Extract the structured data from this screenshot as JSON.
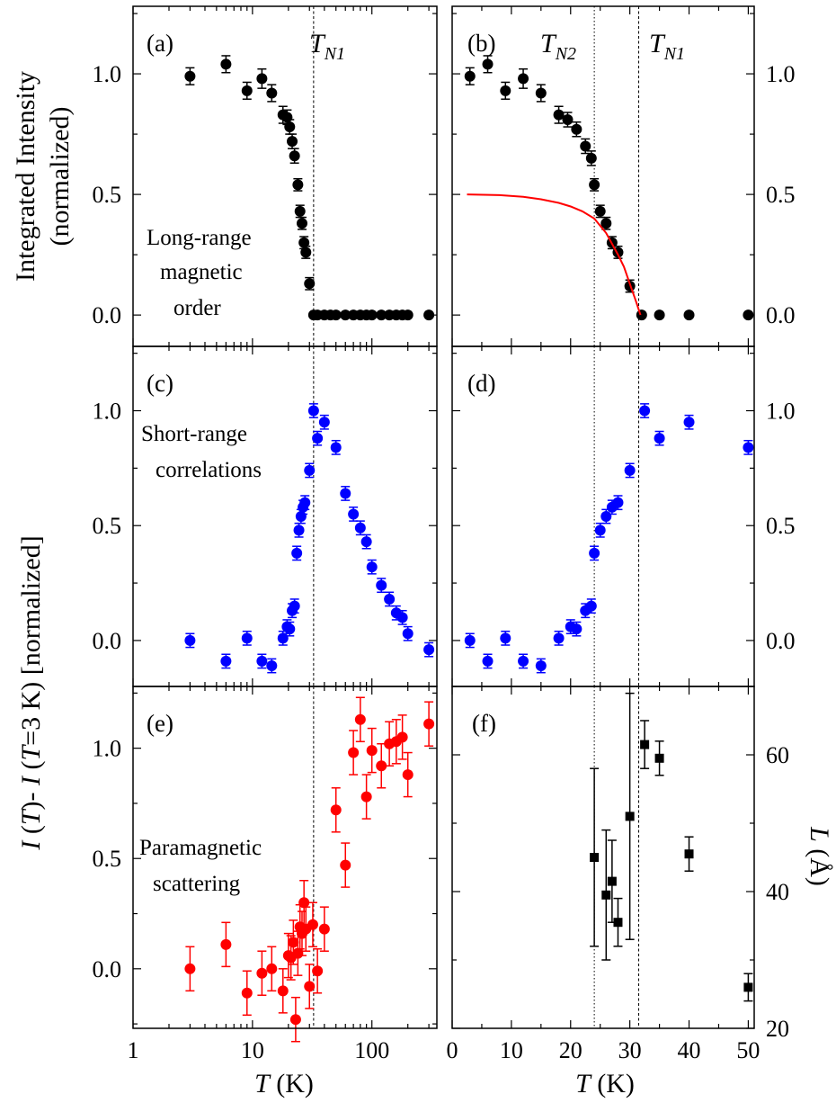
{
  "figure": {
    "ylabel_top_left": "Integrated Intensity",
    "ylabel_top_left2": "(normalized)",
    "ylabel_mid_left_parts": [
      "I",
      " (",
      "T",
      ")- ",
      "I",
      " (",
      "T",
      "=3 K) [normalized]"
    ],
    "ylabel_right_parts": [
      "L",
      " (Å)"
    ],
    "xlabel_parts": [
      "T",
      " (K)"
    ]
  },
  "chart_data": [
    {
      "panel": "a",
      "label": "(a)",
      "type": "scatter",
      "xscale": "log",
      "xlim": [
        1,
        350
      ],
      "ylim": [
        -0.13,
        1.28
      ],
      "yticks": [
        0.0,
        0.5,
        1.0
      ],
      "ytick_labels": [
        "0.0",
        "0.5",
        "1.0"
      ],
      "annotations": [
        "Long-range",
        "magnetic",
        "order"
      ],
      "ref_lines": [
        {
          "x": 32.5,
          "label": "T",
          "sub": "N1"
        }
      ],
      "series": [
        {
          "color": "#000000",
          "marker": "circle",
          "points": [
            [
              3,
              0.99,
              0.035
            ],
            [
              6,
              1.04,
              0.035
            ],
            [
              9,
              0.93,
              0.035
            ],
            [
              12,
              0.98,
              0.04
            ],
            [
              14.5,
              0.92,
              0.035
            ],
            [
              18,
              0.83,
              0.035
            ],
            [
              19.5,
              0.82,
              0.03
            ],
            [
              20.5,
              0.78,
              0.03
            ],
            [
              21.5,
              0.72,
              0.03
            ],
            [
              22.5,
              0.66,
              0.03
            ],
            [
              24,
              0.54,
              0.025
            ],
            [
              25,
              0.43,
              0.025
            ],
            [
              26,
              0.38,
              0.025
            ],
            [
              27,
              0.3,
              0.025
            ],
            [
              28,
              0.26,
              0.025
            ],
            [
              30,
              0.13,
              0.025
            ],
            [
              32.5,
              0,
              0
            ],
            [
              35,
              0,
              0
            ],
            [
              40,
              0,
              0
            ],
            [
              45,
              0,
              0
            ],
            [
              50,
              0,
              0
            ],
            [
              60,
              0,
              0
            ],
            [
              70,
              0,
              0
            ],
            [
              80,
              0,
              0
            ],
            [
              90,
              0,
              0
            ],
            [
              100,
              0,
              0
            ],
            [
              120,
              0,
              0
            ],
            [
              140,
              0,
              0
            ],
            [
              160,
              0,
              0
            ],
            [
              180,
              0,
              0
            ],
            [
              200,
              0,
              0
            ],
            [
              300,
              0,
              0
            ]
          ]
        }
      ]
    },
    {
      "panel": "b",
      "label": "(b)",
      "type": "scatter",
      "xscale": "linear",
      "xlim": [
        0,
        51
      ],
      "ylim": [
        -0.13,
        1.28
      ],
      "yticks": [
        0.0,
        0.5,
        1.0
      ],
      "ytick_labels": [
        "0.0",
        "0.5",
        "1.0"
      ],
      "ref_lines": [
        {
          "x": 24,
          "label": "T",
          "sub": "N2"
        },
        {
          "x": 31.5,
          "label": "T",
          "sub": "N1"
        }
      ],
      "series": [
        {
          "color": "#000000",
          "marker": "circle",
          "points": [
            [
              3,
              0.99,
              0.035
            ],
            [
              6,
              1.04,
              0.035
            ],
            [
              9,
              0.93,
              0.035
            ],
            [
              12,
              0.98,
              0.04
            ],
            [
              15,
              0.92,
              0.035
            ],
            [
              18,
              0.83,
              0.035
            ],
            [
              19.5,
              0.81,
              0.03
            ],
            [
              21,
              0.77,
              0.03
            ],
            [
              22.5,
              0.7,
              0.03
            ],
            [
              23.5,
              0.65,
              0.03
            ],
            [
              24,
              0.54,
              0.025
            ],
            [
              25,
              0.43,
              0.025
            ],
            [
              26,
              0.38,
              0.025
            ],
            [
              27,
              0.3,
              0.025
            ],
            [
              28,
              0.26,
              0.025
            ],
            [
              30,
              0.12,
              0.025
            ],
            [
              32,
              0,
              0
            ],
            [
              35,
              0,
              0
            ],
            [
              40,
              0,
              0
            ],
            [
              50,
              0,
              0
            ]
          ]
        },
        {
          "color": "#ff0000",
          "marker": "none",
          "line": [
            [
              2.5,
              0.5
            ],
            [
              8,
              0.497
            ],
            [
              12,
              0.49
            ],
            [
              15,
              0.48
            ],
            [
              18,
              0.465
            ],
            [
              20,
              0.45
            ],
            [
              22,
              0.43
            ],
            [
              24,
              0.4
            ],
            [
              26,
              0.34
            ],
            [
              28,
              0.25
            ],
            [
              29,
              0.2
            ],
            [
              30,
              0.13
            ],
            [
              31,
              0.06
            ],
            [
              31.8,
              0.0
            ]
          ]
        }
      ]
    },
    {
      "panel": "c",
      "label": "(c)",
      "type": "scatter",
      "xscale": "log",
      "xlim": [
        1,
        350
      ],
      "ylim": [
        -0.2,
        1.28
      ],
      "yticks": [
        0.0,
        0.5,
        1.0
      ],
      "ytick_labels": [
        "0.0",
        "0.5",
        "1.0"
      ],
      "annotations": [
        "Short-range",
        "correlations"
      ],
      "ref_lines": [
        {
          "x": 32.5
        }
      ],
      "series": [
        {
          "color": "#0000ff",
          "marker": "circle",
          "points": [
            [
              3,
              0.0,
              0.03
            ],
            [
              6,
              -0.09,
              0.03
            ],
            [
              9,
              0.01,
              0.03
            ],
            [
              12,
              -0.09,
              0.03
            ],
            [
              14.5,
              -0.11,
              0.03
            ],
            [
              18,
              0.01,
              0.03
            ],
            [
              19.5,
              0.06,
              0.03
            ],
            [
              20.5,
              0.05,
              0.03
            ],
            [
              21.5,
              0.13,
              0.03
            ],
            [
              22.5,
              0.15,
              0.03
            ],
            [
              23.5,
              0.38,
              0.03
            ],
            [
              24.5,
              0.48,
              0.03
            ],
            [
              25.5,
              0.54,
              0.03
            ],
            [
              26.5,
              0.58,
              0.03
            ],
            [
              27.5,
              0.6,
              0.03
            ],
            [
              30,
              0.74,
              0.03
            ],
            [
              32.5,
              1.0,
              0.03
            ],
            [
              35,
              0.88,
              0.03
            ],
            [
              40,
              0.95,
              0.03
            ],
            [
              50,
              0.84,
              0.03
            ],
            [
              60,
              0.64,
              0.03
            ],
            [
              70,
              0.55,
              0.03
            ],
            [
              80,
              0.49,
              0.03
            ],
            [
              90,
              0.43,
              0.03
            ],
            [
              100,
              0.32,
              0.03
            ],
            [
              120,
              0.24,
              0.03
            ],
            [
              140,
              0.18,
              0.03
            ],
            [
              160,
              0.12,
              0.03
            ],
            [
              180,
              0.1,
              0.03
            ],
            [
              200,
              0.03,
              0.03
            ],
            [
              300,
              -0.04,
              0.03
            ]
          ]
        }
      ]
    },
    {
      "panel": "d",
      "label": "(d)",
      "type": "scatter",
      "xscale": "linear",
      "xlim": [
        0,
        51
      ],
      "ylim": [
        -0.2,
        1.28
      ],
      "yticks": [
        0.0,
        0.5,
        1.0
      ],
      "ytick_labels": [
        "0.0",
        "0.5",
        "1.0"
      ],
      "ref_lines": [
        {
          "x": 24
        },
        {
          "x": 31.5
        }
      ],
      "series": [
        {
          "color": "#0000ff",
          "marker": "circle",
          "points": [
            [
              3,
              0.0,
              0.03
            ],
            [
              6,
              -0.09,
              0.03
            ],
            [
              9,
              0.01,
              0.03
            ],
            [
              12,
              -0.09,
              0.03
            ],
            [
              15,
              -0.11,
              0.03
            ],
            [
              18,
              0.01,
              0.03
            ],
            [
              20,
              0.06,
              0.03
            ],
            [
              21,
              0.05,
              0.03
            ],
            [
              22.5,
              0.13,
              0.03
            ],
            [
              23.5,
              0.15,
              0.03
            ],
            [
              24,
              0.38,
              0.03
            ],
            [
              25,
              0.48,
              0.03
            ],
            [
              26,
              0.54,
              0.03
            ],
            [
              27,
              0.58,
              0.03
            ],
            [
              28,
              0.6,
              0.03
            ],
            [
              30,
              0.74,
              0.03
            ],
            [
              32.5,
              1.0,
              0.03
            ],
            [
              35,
              0.88,
              0.03
            ],
            [
              40,
              0.95,
              0.03
            ],
            [
              50,
              0.84,
              0.03
            ]
          ]
        }
      ]
    },
    {
      "panel": "e",
      "label": "(e)",
      "type": "scatter",
      "xscale": "log",
      "xlim": [
        1,
        350
      ],
      "ylim": [
        -0.27,
        1.28
      ],
      "yticks": [
        0.0,
        0.5,
        1.0
      ],
      "ytick_labels": [
        "0.0",
        "0.5",
        "1.0"
      ],
      "xticks": [
        1,
        10,
        100
      ],
      "xtick_labels": [
        "1",
        "10",
        "100"
      ],
      "annotations": [
        "Paramagnetic",
        "scattering"
      ],
      "ref_lines": [
        {
          "x": 32.5
        }
      ],
      "series": [
        {
          "color": "#ff0000",
          "marker": "circle",
          "points": [
            [
              3,
              0.0,
              0.1
            ],
            [
              6,
              0.11,
              0.1
            ],
            [
              9,
              -0.11,
              0.1
            ],
            [
              12,
              -0.02,
              0.1
            ],
            [
              14.5,
              0.0,
              0.1
            ],
            [
              18,
              -0.1,
              0.1
            ],
            [
              20,
              0.06,
              0.1
            ],
            [
              21,
              0.05,
              0.1
            ],
            [
              22,
              0.12,
              0.1
            ],
            [
              23,
              -0.23,
              0.1
            ],
            [
              24,
              0.07,
              0.1
            ],
            [
              25,
              0.19,
              0.1
            ],
            [
              26,
              0.16,
              0.1
            ],
            [
              27,
              0.3,
              0.1
            ],
            [
              28,
              0.18,
              0.1
            ],
            [
              30,
              -0.08,
              0.1
            ],
            [
              32,
              0.2,
              0.1
            ],
            [
              35,
              -0.01,
              0.1
            ],
            [
              40,
              0.18,
              0.1
            ],
            [
              50,
              0.72,
              0.1
            ],
            [
              60,
              0.47,
              0.1
            ],
            [
              70,
              0.98,
              0.1
            ],
            [
              80,
              1.13,
              0.1
            ],
            [
              90,
              0.78,
              0.1
            ],
            [
              100,
              0.99,
              0.1
            ],
            [
              120,
              0.92,
              0.1
            ],
            [
              140,
              1.02,
              0.1
            ],
            [
              160,
              1.03,
              0.1
            ],
            [
              180,
              1.05,
              0.1
            ],
            [
              200,
              0.88,
              0.1
            ],
            [
              300,
              1.11,
              0.1
            ]
          ]
        }
      ]
    },
    {
      "panel": "f",
      "label": "(f)",
      "type": "scatter",
      "xscale": "linear",
      "xlim": [
        0,
        51
      ],
      "ylim": [
        20,
        70
      ],
      "yticks": [
        20,
        40,
        60
      ],
      "ytick_labels": [
        "20",
        "40",
        "60"
      ],
      "xticks": [
        0,
        10,
        20,
        30,
        40,
        50
      ],
      "xtick_labels": [
        "0",
        "10",
        "20",
        "30",
        "40",
        "50"
      ],
      "ref_lines": [
        {
          "x": 24
        },
        {
          "x": 31.5
        }
      ],
      "series": [
        {
          "color": "#000000",
          "marker": "square",
          "points": [
            [
              24,
              45,
              13
            ],
            [
              26,
              39.5,
              9.5
            ],
            [
              27,
              41.5,
              6
            ],
            [
              28,
              35.5,
              3.5
            ],
            [
              30,
              51,
              18
            ],
            [
              32.5,
              61.5,
              3.5
            ],
            [
              35,
              59.5,
              2.5
            ],
            [
              40,
              45.5,
              2.5
            ],
            [
              50,
              26,
              2
            ]
          ]
        }
      ]
    }
  ]
}
